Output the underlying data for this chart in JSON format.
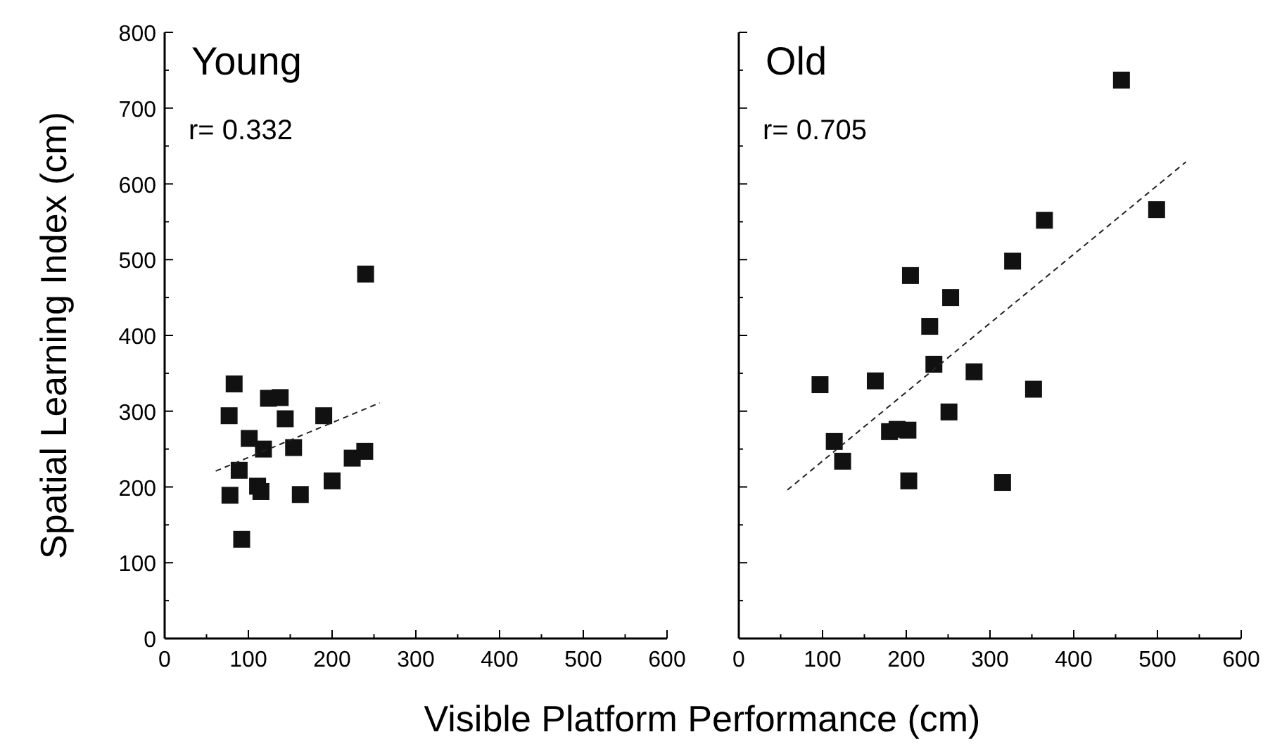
{
  "chart_data": [
    {
      "type": "scatter",
      "title": "Young",
      "ylabel": "Spatial Learning Index (cm)",
      "xlabel": "Visible Platform Performance (cm)",
      "annotations": [
        "r= 0.332"
      ],
      "marker": "square",
      "grid": false,
      "xlim": [
        0,
        600
      ],
      "xticks": [
        0,
        {
          "value": 50,
          "label": null
        },
        100,
        {
          "value": 150,
          "label": null
        },
        200,
        {
          "value": 250,
          "label": null
        },
        300,
        {
          "value": 350,
          "label": null
        },
        400,
        {
          "value": 450,
          "label": null
        },
        500,
        {
          "value": 550,
          "label": null
        },
        600
      ],
      "ylim": [
        0,
        800
      ],
      "yticks": [
        0,
        {
          "value": 50,
          "label": null
        },
        100,
        {
          "value": 150,
          "label": null
        },
        200,
        {
          "value": 250,
          "label": null
        },
        300,
        {
          "value": 350,
          "label": null
        },
        400,
        {
          "value": 450,
          "label": null
        },
        500,
        {
          "value": 550,
          "label": null
        },
        600,
        {
          "value": 650,
          "label": null
        },
        700,
        {
          "value": 750,
          "label": null
        },
        800
      ],
      "series": [
        {
          "color": "#111111",
          "x": [
            77,
            83,
            89,
            78,
            92,
            101,
            111,
            115,
            118,
            124,
            138,
            144,
            154,
            162,
            190,
            200,
            224,
            239,
            240
          ],
          "values": [
            294,
            336,
            222,
            189,
            131,
            264,
            201,
            194,
            250,
            317,
            318,
            290,
            252,
            190,
            294,
            208,
            238,
            247,
            481
          ]
        },
        {
          "type": "line",
          "color": "#222222",
          "line_style": "dashed",
          "marker": "none",
          "x": [
            61,
            257
          ],
          "values": [
            221,
            311
          ]
        }
      ]
    },
    {
      "type": "scatter",
      "title": "Old",
      "annotations": [
        "r= 0.705"
      ],
      "marker": "square",
      "grid": false,
      "tick_labels": "x",
      "xlim": [
        0,
        600
      ],
      "xticks": [
        0,
        {
          "value": 50,
          "label": null
        },
        100,
        {
          "value": 150,
          "label": null
        },
        200,
        {
          "value": 250,
          "label": null
        },
        300,
        {
          "value": 350,
          "label": null
        },
        400,
        {
          "value": 450,
          "label": null
        },
        500,
        {
          "value": 550,
          "label": null
        },
        600
      ],
      "ylim": [
        0,
        800
      ],
      "yticks": [
        0,
        {
          "value": 50,
          "label": null
        },
        100,
        {
          "value": 150,
          "label": null
        },
        200,
        {
          "value": 250,
          "label": null
        },
        300,
        {
          "value": 350,
          "label": null
        },
        400,
        {
          "value": 450,
          "label": null
        },
        500,
        {
          "value": 550,
          "label": null
        },
        600,
        {
          "value": 650,
          "label": null
        },
        700,
        {
          "value": 750,
          "label": null
        },
        800
      ],
      "series": [
        {
          "color": "#111111",
          "x": [
            97,
            114,
            124,
            163,
            180,
            189,
            202,
            203,
            205,
            228,
            233,
            251,
            253,
            281,
            315,
            327,
            352,
            365,
            457,
            499
          ],
          "values": [
            335,
            260,
            234,
            340,
            273,
            276,
            275,
            208,
            479,
            412,
            362,
            299,
            450,
            352,
            206,
            498,
            329,
            552,
            737,
            566
          ]
        },
        {
          "type": "line",
          "color": "#222222",
          "line_style": "dashed",
          "marker": "none",
          "x": [
            58,
            534
          ],
          "values": [
            196,
            629
          ]
        }
      ]
    }
  ]
}
